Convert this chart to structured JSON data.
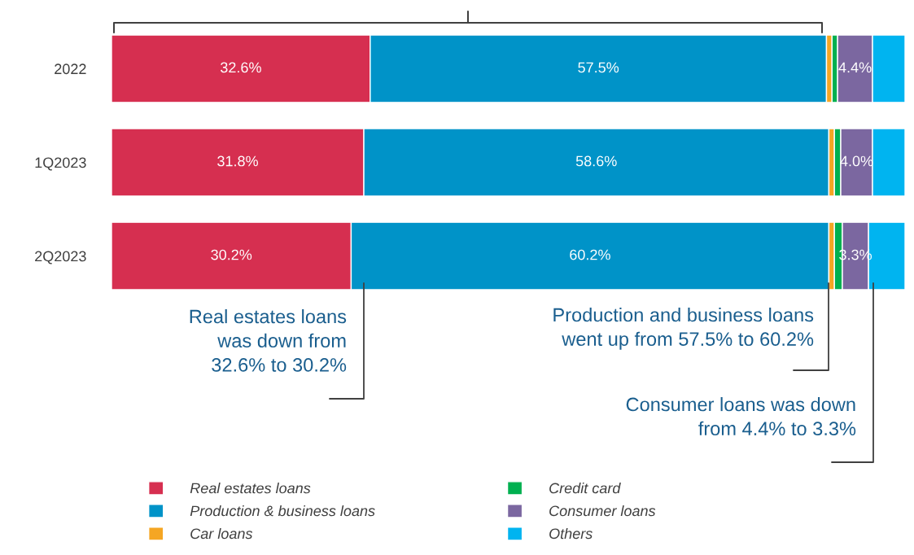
{
  "chart_data": {
    "type": "bar",
    "orientation": "horizontal",
    "stacked": true,
    "categories": [
      "2022",
      "1Q2023",
      "2Q2023"
    ],
    "series": [
      {
        "name": "Real estates loans",
        "color": "#d62f50",
        "values": [
          32.6,
          31.8,
          30.2
        ],
        "value_labels": [
          "32.6%",
          "31.8%",
          "30.2%"
        ]
      },
      {
        "name": "Production & business loans",
        "color": "#0093c8",
        "values": [
          57.5,
          58.6,
          60.2
        ],
        "value_labels": [
          "57.5%",
          "58.6%",
          "60.2%"
        ]
      },
      {
        "name": "Car loans",
        "color": "#f5a623",
        "values": [
          0.7,
          0.7,
          0.7
        ]
      },
      {
        "name": "Credit card",
        "color": "#00b050",
        "values": [
          0.7,
          0.8,
          1.0
        ]
      },
      {
        "name": "Consumer loans",
        "color": "#7b67a0",
        "values": [
          4.4,
          4.0,
          3.3
        ],
        "value_labels": [
          "4.4%",
          "4.0%",
          "3.3%"
        ]
      },
      {
        "name": "Others",
        "color": "#00b4f0",
        "values": [
          4.1,
          4.1,
          4.6
        ]
      }
    ],
    "annotations": [
      "Real estates loans\nwas down from\n32.6% to 30.2%",
      "Production and business loans\nwent up from 57.5% to 60.2%",
      "Consumer loans was down\nfrom 4.4% to 3.3%"
    ],
    "legend": "bottom"
  }
}
